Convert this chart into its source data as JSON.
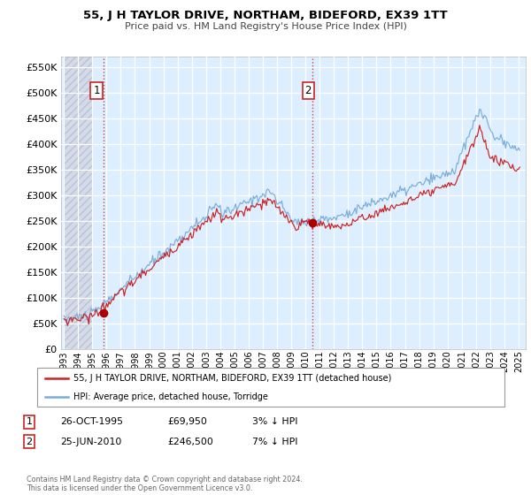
{
  "title": "55, J H TAYLOR DRIVE, NORTHAM, BIDEFORD, EX39 1TT",
  "subtitle": "Price paid vs. HM Land Registry's House Price Index (HPI)",
  "legend_line1": "55, J H TAYLOR DRIVE, NORTHAM, BIDEFORD, EX39 1TT (detached house)",
  "legend_line2": "HPI: Average price, detached house, Torridge",
  "annotation1_label": "1",
  "annotation1_date": "26-OCT-1995",
  "annotation1_price": "£69,950",
  "annotation1_hpi": "3% ↓ HPI",
  "annotation2_label": "2",
  "annotation2_date": "25-JUN-2010",
  "annotation2_price": "£246,500",
  "annotation2_hpi": "7% ↓ HPI",
  "footer": "Contains HM Land Registry data © Crown copyright and database right 2024.\nThis data is licensed under the Open Government Licence v3.0.",
  "sale1_year": 1995.82,
  "sale1_value": 69950,
  "sale2_year": 2010.48,
  "sale2_value": 246500,
  "hpi_color": "#7aaddc",
  "price_color": "#cc2222",
  "dot_color": "#aa0000",
  "vline_color": "#cc2222",
  "plot_bg_color": "#ddeeff",
  "grid_color": "#ffffff",
  "ylim": [
    0,
    570000
  ],
  "yticks": [
    0,
    50000,
    100000,
    150000,
    200000,
    250000,
    300000,
    350000,
    400000,
    450000,
    500000,
    550000
  ],
  "start_year": 1993,
  "end_year": 2025
}
